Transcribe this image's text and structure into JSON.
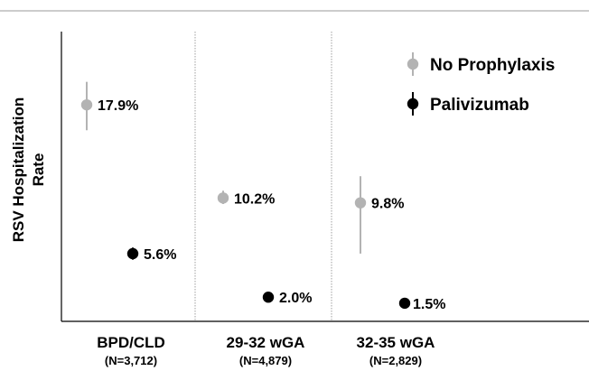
{
  "chart_data": {
    "type": "scatter",
    "ylabel": "RSV Hospitalization Rate",
    "ylabel_lines": [
      "RSV Hospitalization",
      "Rate"
    ],
    "categories": [
      "BPD/CLD",
      "29-32 wGA",
      "32-35 wGA"
    ],
    "category_n": [
      "(N=3,712)",
      "(N=4,879)",
      "(N=2,829)"
    ],
    "ylim": [
      0,
      20
    ],
    "grid": false,
    "legend_position": "top-right",
    "series": [
      {
        "name": "No Prophylaxis",
        "color": "#b3b3b3",
        "values": [
          17.9,
          10.2,
          9.8
        ],
        "labels": [
          "17.9%",
          "10.2%",
          "9.8%"
        ],
        "ci_low": [
          15.8,
          9.7,
          5.6
        ],
        "ci_high": [
          19.8,
          10.8,
          12.0
        ]
      },
      {
        "name": "Palivizumab",
        "color": "#000000",
        "values": [
          5.6,
          2.0,
          1.5
        ],
        "labels": [
          "5.6%",
          "2.0%",
          "1.5%"
        ],
        "ci_low": [
          5.1,
          2.0,
          1.5
        ],
        "ci_high": [
          6.1,
          2.0,
          1.5
        ]
      }
    ]
  }
}
